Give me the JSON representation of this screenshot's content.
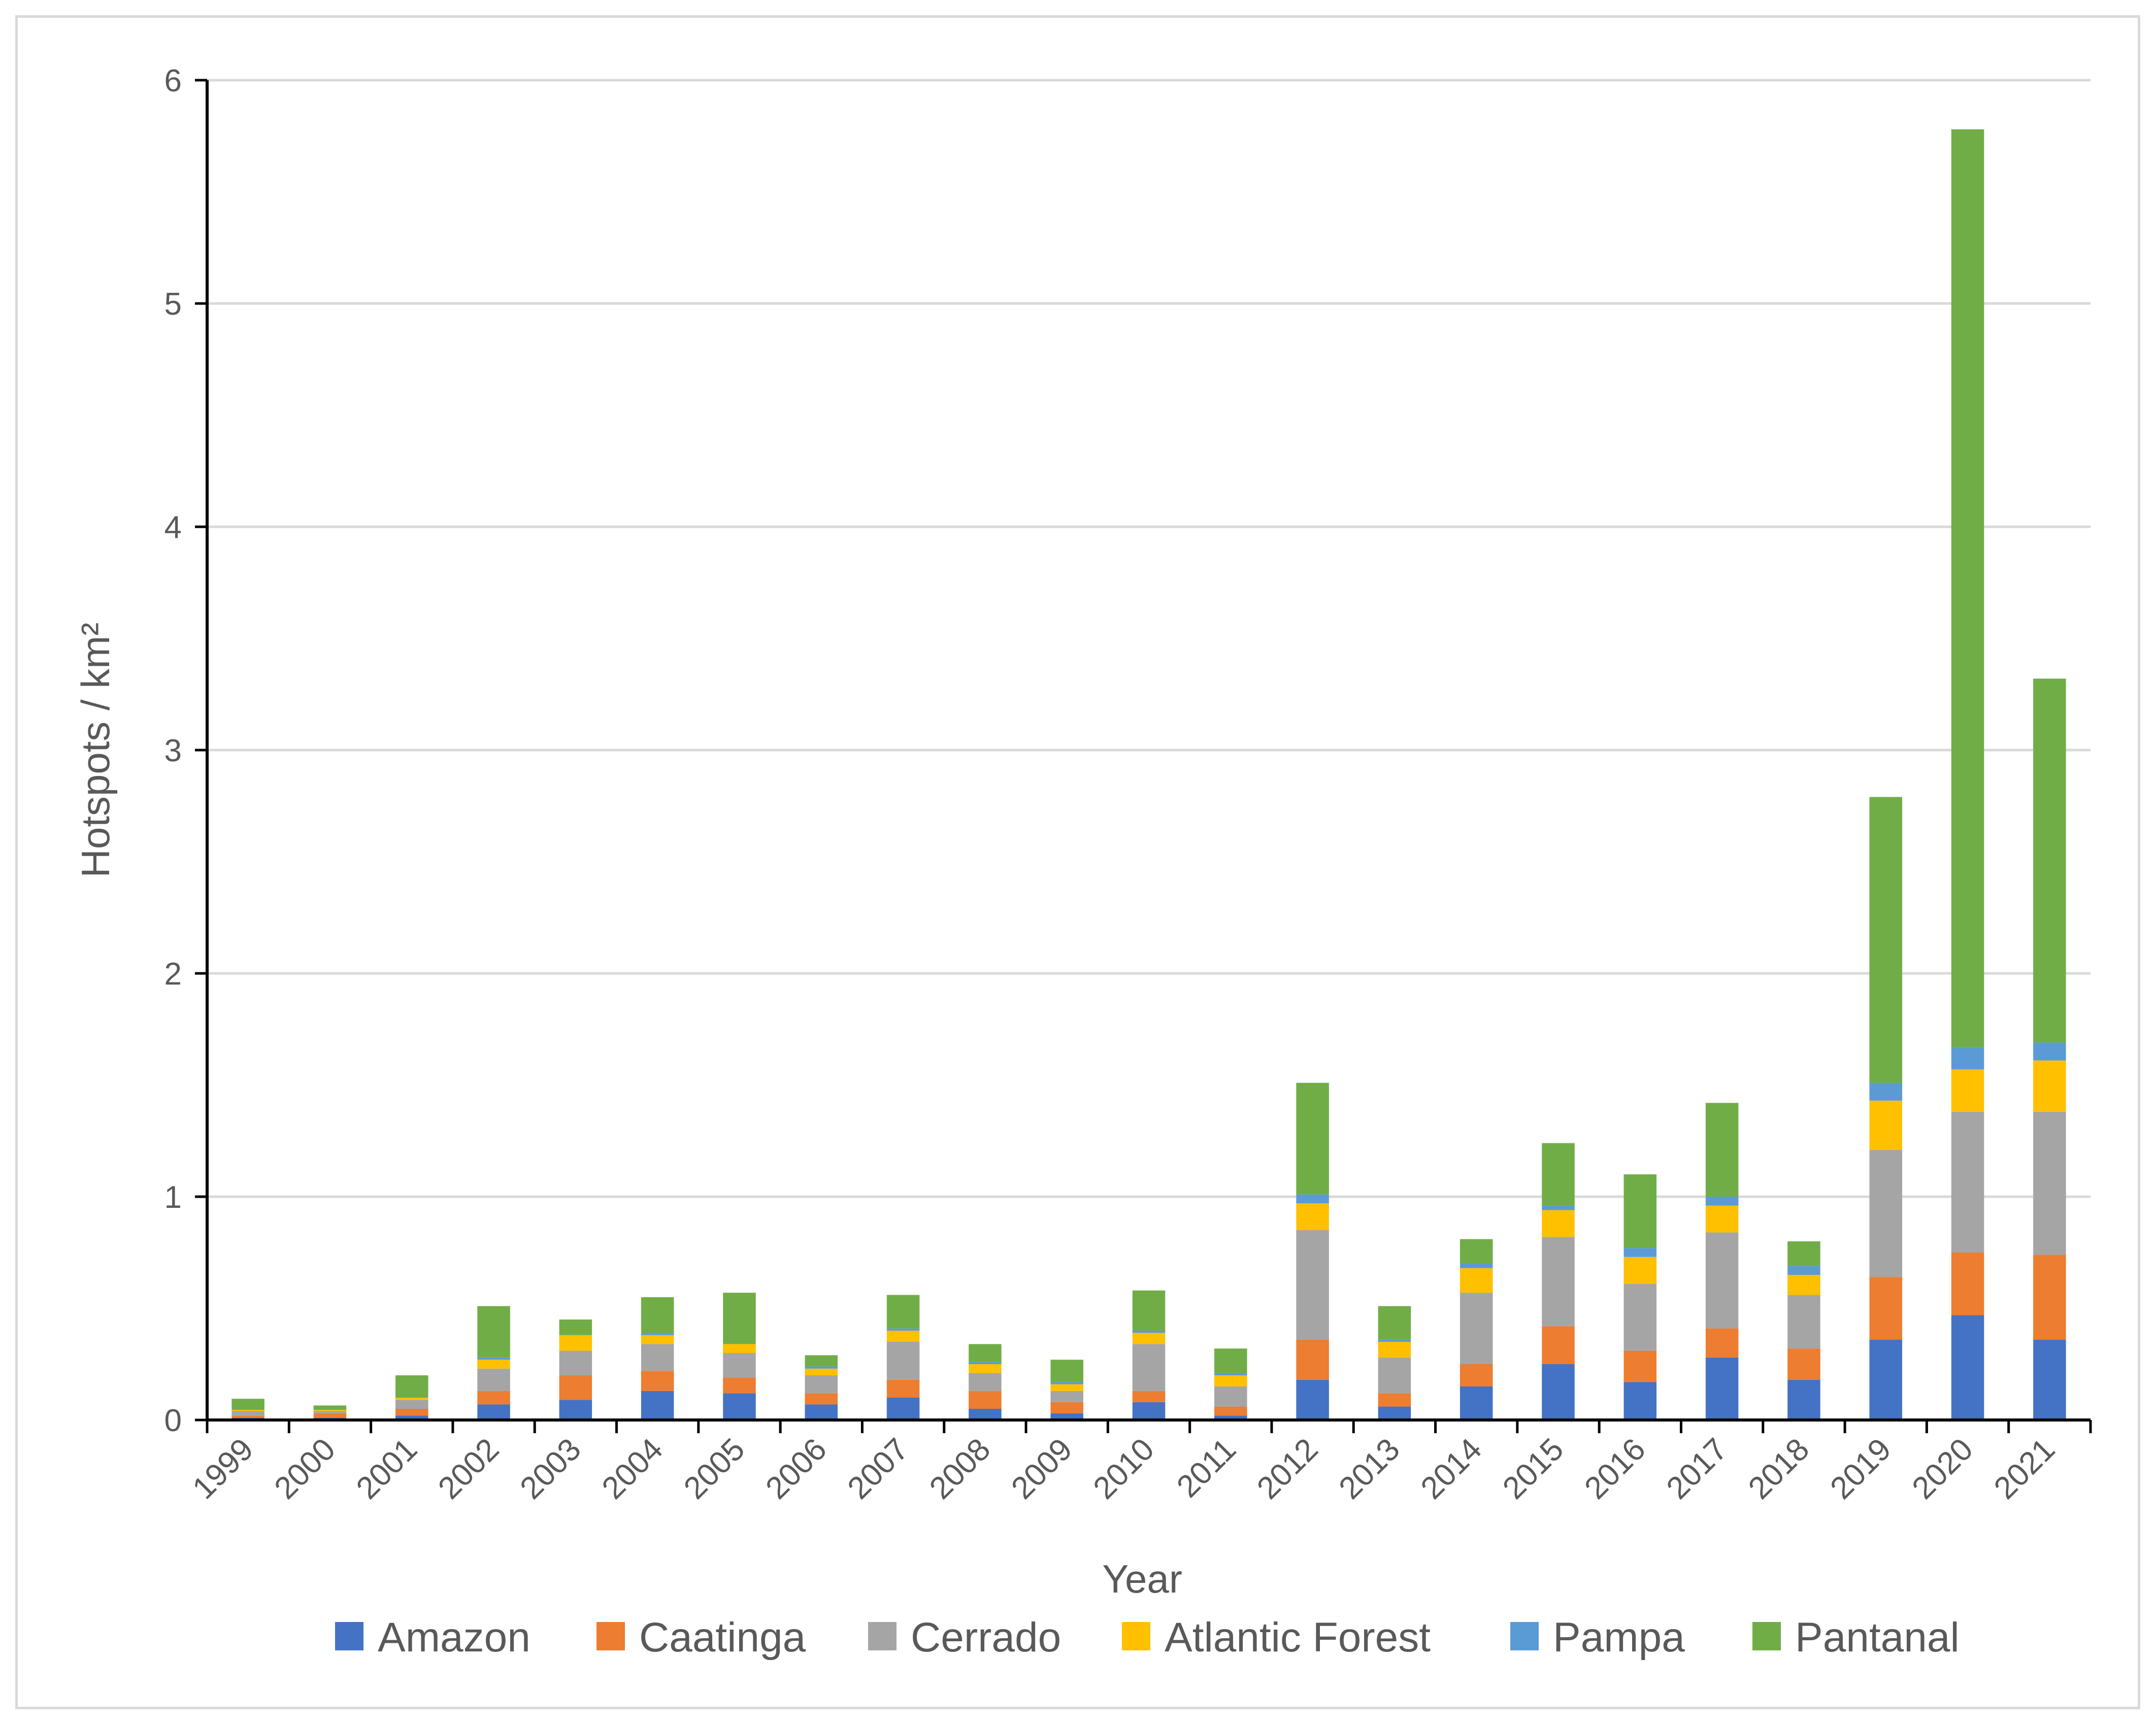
{
  "chart_data": {
    "type": "bar",
    "stacked": true,
    "title": "",
    "xlabel": "Year",
    "ylabel": "Hotspots / km²",
    "ylim": [
      0,
      6
    ],
    "yticks": [
      "0",
      "1",
      "2",
      "3",
      "4",
      "5",
      "6"
    ],
    "grid": true,
    "legend_position": "bottom",
    "categories": [
      "1999",
      "2000",
      "2001",
      "2002",
      "2003",
      "2004",
      "2005",
      "2006",
      "2007",
      "2008",
      "2009",
      "2010",
      "2011",
      "2012",
      "2013",
      "2014",
      "2015",
      "2016",
      "2017",
      "2018",
      "2019",
      "2020",
      "2021"
    ],
    "series": [
      {
        "name": "Amazon",
        "color": "#4472c4",
        "values": [
          0.01,
          0.01,
          0.02,
          0.07,
          0.09,
          0.13,
          0.12,
          0.07,
          0.1,
          0.05,
          0.03,
          0.08,
          0.02,
          0.18,
          0.06,
          0.15,
          0.25,
          0.17,
          0.28,
          0.18,
          0.36,
          0.47,
          0.36
        ]
      },
      {
        "name": "Caatinga",
        "color": "#ed7d31",
        "values": [
          0.01,
          0.02,
          0.03,
          0.06,
          0.11,
          0.09,
          0.07,
          0.05,
          0.08,
          0.08,
          0.05,
          0.05,
          0.04,
          0.18,
          0.06,
          0.1,
          0.17,
          0.14,
          0.13,
          0.14,
          0.28,
          0.28,
          0.38
        ]
      },
      {
        "name": "Cerrado",
        "color": "#a5a5a5",
        "values": [
          0.02,
          0.01,
          0.04,
          0.1,
          0.11,
          0.12,
          0.11,
          0.08,
          0.17,
          0.08,
          0.05,
          0.21,
          0.09,
          0.49,
          0.16,
          0.32,
          0.4,
          0.3,
          0.43,
          0.24,
          0.57,
          0.63,
          0.64
        ]
      },
      {
        "name": "Atlantic Forest",
        "color": "#ffc000",
        "values": [
          0.005,
          0.005,
          0.01,
          0.04,
          0.07,
          0.04,
          0.04,
          0.03,
          0.05,
          0.04,
          0.03,
          0.05,
          0.05,
          0.12,
          0.07,
          0.11,
          0.12,
          0.12,
          0.12,
          0.09,
          0.22,
          0.19,
          0.23
        ]
      },
      {
        "name": "Pampa",
        "color": "#5b9bd5",
        "values": [
          0.0,
          0.0,
          0.0,
          0.01,
          0.0,
          0.01,
          0.0,
          0.01,
          0.01,
          0.01,
          0.01,
          0.01,
          0.01,
          0.04,
          0.01,
          0.02,
          0.02,
          0.04,
          0.04,
          0.04,
          0.08,
          0.1,
          0.08
        ]
      },
      {
        "name": "Pantanal",
        "color": "#70ad47",
        "values": [
          0.05,
          0.02,
          0.1,
          0.23,
          0.07,
          0.16,
          0.23,
          0.05,
          0.15,
          0.08,
          0.1,
          0.18,
          0.11,
          0.5,
          0.15,
          0.11,
          0.28,
          0.33,
          0.42,
          0.11,
          1.28,
          4.11,
          1.63
        ]
      }
    ]
  },
  "colors": {
    "gridline": "#d9d9d9",
    "axis": "#000000",
    "text": "#595959",
    "frame": "#d9d9d9"
  }
}
